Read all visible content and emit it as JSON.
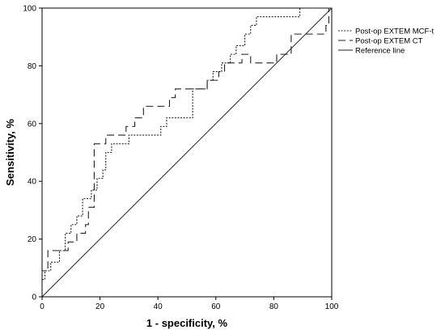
{
  "chart_data": {
    "type": "line",
    "title": "",
    "xlabel": "1 - specificity, %",
    "ylabel": "Sensitivity, %",
    "xlim": [
      0,
      100
    ],
    "ylim": [
      0,
      100
    ],
    "xticks": [
      0,
      20,
      40,
      60,
      80,
      100
    ],
    "yticks": [
      0,
      20,
      40,
      60,
      80,
      100
    ],
    "grid": false,
    "legend_position": "top-right",
    "series": [
      {
        "name": "Post-op EXTEM MCF-t",
        "style": "dotted",
        "color": "#222222",
        "x": [
          0,
          0,
          1,
          1,
          3,
          3,
          6,
          6,
          8,
          8,
          10,
          10,
          12,
          12,
          14,
          14,
          17,
          17,
          19,
          19,
          21,
          21,
          22,
          22,
          24,
          24,
          30,
          30,
          41,
          41,
          43,
          43,
          52,
          52,
          57,
          57,
          59,
          59,
          62,
          62,
          65,
          65,
          67,
          67,
          70,
          70,
          72,
          72,
          74,
          74,
          76,
          76,
          82,
          82,
          89,
          89,
          100
        ],
        "y": [
          0,
          6,
          6,
          9,
          9,
          12,
          12,
          16,
          16,
          22,
          22,
          25,
          25,
          28,
          28,
          34,
          34,
          37,
          37,
          41,
          41,
          44,
          44,
          50,
          50,
          53,
          53,
          56,
          56,
          59,
          59,
          62,
          62,
          72,
          72,
          75,
          75,
          78,
          78,
          81,
          81,
          84,
          84,
          87,
          87,
          91,
          91,
          94,
          94,
          97,
          97,
          97,
          97,
          97,
          97,
          100,
          100
        ]
      },
      {
        "name": "Post-op EXTEM CT",
        "style": "dashed",
        "color": "#222222",
        "x": [
          0,
          0,
          2,
          2,
          5,
          5,
          9,
          9,
          12,
          12,
          15,
          15,
          16,
          16,
          18,
          18,
          20,
          20,
          22,
          22,
          24,
          24,
          27,
          27,
          29,
          29,
          32,
          32,
          35,
          35,
          44,
          44,
          46,
          46,
          53,
          53,
          57,
          57,
          61,
          61,
          63,
          63,
          66,
          66,
          69,
          69,
          72,
          72,
          81,
          81,
          86,
          86,
          96,
          96,
          98,
          98,
          99,
          99,
          100
        ],
        "y": [
          0,
          9,
          9,
          16,
          16,
          16,
          16,
          19,
          19,
          22,
          22,
          25,
          25,
          31,
          31,
          53,
          53,
          53,
          53,
          56,
          56,
          56,
          56,
          56,
          56,
          59,
          59,
          62,
          62,
          66,
          66,
          69,
          69,
          72,
          72,
          72,
          72,
          75,
          75,
          78,
          78,
          81,
          81,
          81,
          81,
          84,
          84,
          81,
          81,
          84,
          84,
          91,
          91,
          91,
          91,
          94,
          94,
          100,
          100
        ]
      },
      {
        "name": "Reference line",
        "style": "solid",
        "color": "#222222",
        "x": [
          0,
          100
        ],
        "y": [
          0,
          100
        ]
      }
    ]
  }
}
